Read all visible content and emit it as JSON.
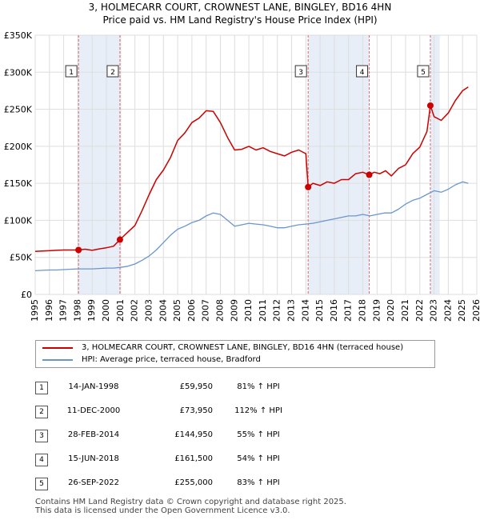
{
  "title_line1": "3, HOLMECARR COURT, CROWNEST LANE, BINGLEY, BD16 4HN",
  "title_line2": "Price paid vs. HM Land Registry's House Price Index (HPI)",
  "colors": {
    "property": "#cc0000",
    "hpi": "#6a96cc",
    "shade": "#e8eef8",
    "grid": "#dddddd",
    "marker_line": "#dd6666"
  },
  "legend": {
    "property_label": "3, HOLMECARR COURT, CROWNEST LANE, BINGLEY, BD16 4HN (terraced house)",
    "hpi_label": "HPI: Average price, terraced house, Bradford"
  },
  "transactions": [
    {
      "num": "1",
      "date": "14-JAN-1998",
      "price": "£59,950",
      "hpi": "81% ↑ HPI"
    },
    {
      "num": "2",
      "date": "11-DEC-2000",
      "price": "£73,950",
      "hpi": "112% ↑ HPI"
    },
    {
      "num": "3",
      "date": "28-FEB-2014",
      "price": "£144,950",
      "hpi": "55% ↑ HPI"
    },
    {
      "num": "4",
      "date": "15-JUN-2018",
      "price": "£161,500",
      "hpi": "54% ↑ HPI"
    },
    {
      "num": "5",
      "date": "26-SEP-2022",
      "price": "£255,000",
      "hpi": "83% ↑ HPI"
    }
  ],
  "footer_line1": "Contains HM Land Registry data © Crown copyright and database right 2025.",
  "footer_line2": "This data is licensed under the Open Government Licence v3.0.",
  "chart_data": {
    "type": "line",
    "title": "3, HOLMECARR COURT, CROWNEST LANE, BINGLEY, BD16 4HN",
    "subtitle": "Price paid vs. HM Land Registry's House Price Index (HPI)",
    "xlabel": "",
    "ylabel": "",
    "xlim": [
      1995,
      2026
    ],
    "ylim": [
      0,
      350000
    ],
    "x_ticks": [
      1995,
      1996,
      1997,
      1998,
      1999,
      2000,
      2001,
      2002,
      2003,
      2004,
      2005,
      2006,
      2007,
      2008,
      2009,
      2010,
      2011,
      2012,
      2013,
      2014,
      2015,
      2016,
      2017,
      2018,
      2019,
      2020,
      2021,
      2022,
      2023,
      2024,
      2025,
      2026
    ],
    "y_ticks": [
      0,
      50000,
      100000,
      150000,
      200000,
      250000,
      300000,
      350000
    ],
    "y_tick_labels": [
      "£0",
      "£50K",
      "£100K",
      "£150K",
      "£200K",
      "£250K",
      "£300K",
      "£350K"
    ],
    "grid": true,
    "legend_position": "below chart",
    "shaded_ranges": [
      [
        1998.04,
        2000.95
      ],
      [
        2014.16,
        2018.45
      ],
      [
        2022.74,
        2023.4
      ]
    ],
    "sales": [
      {
        "label": "1",
        "x": 1998.04,
        "y": 59950
      },
      {
        "label": "2",
        "x": 2000.95,
        "y": 73950
      },
      {
        "label": "3",
        "x": 2014.16,
        "y": 144950
      },
      {
        "label": "4",
        "x": 2018.45,
        "y": 161500
      },
      {
        "label": "5",
        "x": 2022.74,
        "y": 255000
      }
    ],
    "series": [
      {
        "name": "3, HOLMECARR COURT, CROWNEST LANE, BINGLEY, BD16 4HN (terraced house)",
        "x": [
          1995.0,
          1995.5,
          1996.0,
          1996.5,
          1997.0,
          1997.5,
          1998.04,
          1998.5,
          1999.0,
          1999.5,
          2000.0,
          2000.5,
          2000.95,
          2001.5,
          2002.0,
          2002.5,
          2003.0,
          2003.5,
          2004.0,
          2004.5,
          2005.0,
          2005.5,
          2006.0,
          2006.5,
          2007.0,
          2007.5,
          2008.0,
          2008.5,
          2009.0,
          2009.5,
          2010.0,
          2010.5,
          2011.0,
          2011.5,
          2012.0,
          2012.5,
          2013.0,
          2013.5,
          2014.0,
          2014.16,
          2014.5,
          2015.0,
          2015.5,
          2016.0,
          2016.5,
          2017.0,
          2017.5,
          2018.0,
          2018.45,
          2018.8,
          2019.2,
          2019.6,
          2020.0,
          2020.5,
          2021.0,
          2021.5,
          2022.0,
          2022.5,
          2022.74,
          2023.0,
          2023.5,
          2024.0,
          2024.5,
          2025.0,
          2025.4
        ],
        "values": [
          58000,
          58500,
          59000,
          59500,
          60000,
          60000,
          59950,
          61000,
          59500,
          61500,
          63000,
          65000,
          73950,
          84000,
          93000,
          113000,
          135000,
          155000,
          168000,
          185000,
          208000,
          218000,
          232000,
          238000,
          248000,
          247000,
          232000,
          212000,
          195000,
          196000,
          200000,
          195000,
          198000,
          193000,
          190000,
          187000,
          192000,
          195000,
          190000,
          144950,
          150000,
          147000,
          152000,
          150000,
          155000,
          155000,
          163000,
          165000,
          161500,
          165000,
          163000,
          167000,
          160000,
          170000,
          175000,
          190000,
          199000,
          220000,
          255000,
          240000,
          235000,
          245000,
          262000,
          275000,
          280000
        ]
      },
      {
        "name": "HPI: Average price, terraced house, Bradford",
        "x": [
          1995.0,
          1995.5,
          1996.0,
          1996.5,
          1997.0,
          1997.5,
          1998.0,
          1998.5,
          1999.0,
          1999.5,
          2000.0,
          2000.5,
          2001.0,
          2001.5,
          2002.0,
          2002.5,
          2003.0,
          2003.5,
          2004.0,
          2004.5,
          2005.0,
          2005.5,
          2006.0,
          2006.5,
          2007.0,
          2007.5,
          2008.0,
          2008.5,
          2009.0,
          2009.5,
          2010.0,
          2010.5,
          2011.0,
          2011.5,
          2012.0,
          2012.5,
          2013.0,
          2013.5,
          2014.0,
          2014.5,
          2015.0,
          2015.5,
          2016.0,
          2016.5,
          2017.0,
          2017.5,
          2018.0,
          2018.5,
          2019.0,
          2019.5,
          2020.0,
          2020.5,
          2021.0,
          2021.5,
          2022.0,
          2022.5,
          2023.0,
          2023.5,
          2024.0,
          2024.5,
          2025.0,
          2025.4
        ],
        "values": [
          32000,
          32500,
          33000,
          33000,
          33500,
          34000,
          34500,
          34500,
          34500,
          35000,
          35500,
          35500,
          36500,
          38000,
          41000,
          46000,
          52000,
          60000,
          70000,
          80000,
          88000,
          92000,
          97000,
          100000,
          106000,
          110000,
          108000,
          100000,
          92000,
          94000,
          96000,
          95000,
          94000,
          92000,
          90000,
          90000,
          92000,
          94000,
          95000,
          96000,
          98000,
          100000,
          102000,
          104000,
          106000,
          106000,
          108000,
          106000,
          108000,
          110000,
          110000,
          115000,
          122000,
          127000,
          130000,
          135000,
          140000,
          138000,
          142000,
          148000,
          152000,
          150000
        ]
      }
    ]
  }
}
